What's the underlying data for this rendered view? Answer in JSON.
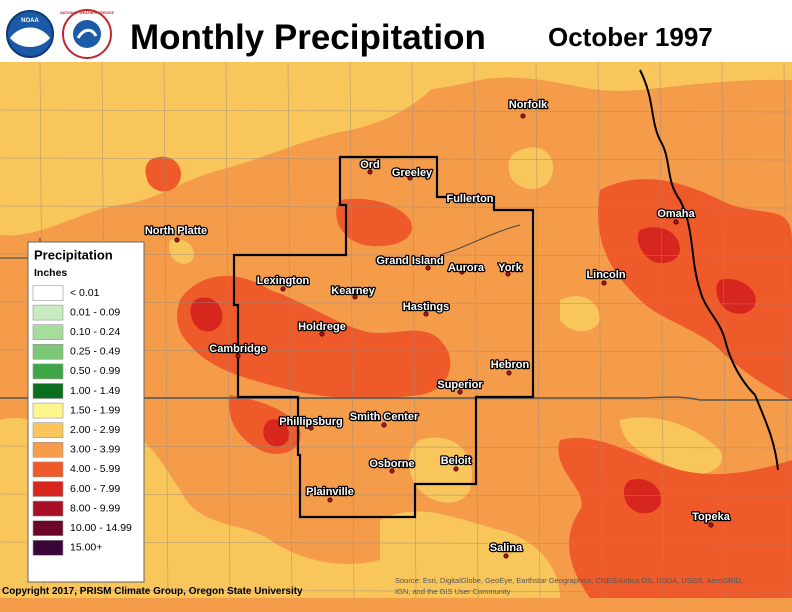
{
  "header": {
    "title": "Monthly Precipitation",
    "date": "October 1997"
  },
  "logos": {
    "noaa": "NOAA",
    "nws": "NATIONAL WEATHER SERVICE"
  },
  "legend": {
    "title": "Precipitation",
    "units": "Inches",
    "items": [
      {
        "label": "< 0.01",
        "color": "#ffffff"
      },
      {
        "label": "0.01 - 0.09",
        "color": "#c8ecc0"
      },
      {
        "label": "0.10 - 0.24",
        "color": "#a6dc9c"
      },
      {
        "label": "0.25 - 0.49",
        "color": "#7dc878"
      },
      {
        "label": "0.50 - 0.99",
        "color": "#3ea646"
      },
      {
        "label": "1.00 - 1.49",
        "color": "#0b6e1d"
      },
      {
        "label": "1.50 - 1.99",
        "color": "#fdf58e"
      },
      {
        "label": "2.00 - 2.99",
        "color": "#f9c65b"
      },
      {
        "label": "3.00 - 3.99",
        "color": "#f59c4b"
      },
      {
        "label": "4.00 - 5.99",
        "color": "#ee5a2a"
      },
      {
        "label": "6.00 - 7.99",
        "color": "#d7261e"
      },
      {
        "label": "8.00 - 9.99",
        "color": "#aa0f2a"
      },
      {
        "label": "10.00 - 14.99",
        "color": "#6d0729"
      },
      {
        "label": "15.00+",
        "color": "#3a0637"
      }
    ]
  },
  "cities": [
    "Norfolk",
    "Ord",
    "Greeley",
    "Fullerton",
    "North Platte",
    "Omaha",
    "Grand Island",
    "Aurora",
    "York",
    "Lincoln",
    "Lexington",
    "Kearney",
    "Hastings",
    "Holdrege",
    "Cambridge",
    "Hebron",
    "Superior",
    "Phillipsburg",
    "Smith Center",
    "Beloit",
    "Osborne",
    "Plainville",
    "Topeka",
    "Salina"
  ],
  "footer": {
    "copyright": "Copyright 2017, PRISM Climate Group, Oregon State University",
    "source": [
      "Source: Esri, DigitalGlobe, GeoEye, Earthstar Geographics, CNES/Airbus DS, USDA, USGS, AeroGRID,",
      "IGN, and the GIS User Community"
    ]
  }
}
